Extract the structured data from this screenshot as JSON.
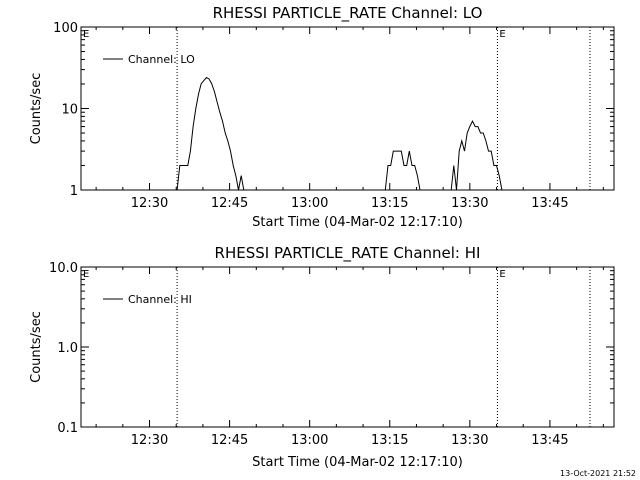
{
  "chart_data": [
    {
      "type": "line",
      "title": "RHESSI PARTICLE_RATE Channel: LO",
      "xlabel": "Start Time (04-Mar-02 12:17:10)",
      "ylabel": "Counts/sec",
      "yscale": "log",
      "ylim": [
        1,
        100
      ],
      "xlim": [
        "12:17:10",
        "13:57:00"
      ],
      "xticks": [
        "12:30",
        "12:45",
        "13:00",
        "13:15",
        "13:30",
        "13:45"
      ],
      "yticks": [
        {
          "value": 1,
          "label": "1"
        },
        {
          "value": 10,
          "label": "10"
        },
        {
          "value": 100,
          "label": "100"
        }
      ],
      "legend": {
        "position": "top-left",
        "entries": [
          "Channel: LO"
        ]
      },
      "vlines": [
        "12:35:10",
        "13:35:10",
        "13:52:30"
      ],
      "flags": [
        {
          "label": "E",
          "x": "12:17:10"
        },
        {
          "label": "E",
          "x": "13:35:10"
        }
      ],
      "grid": false,
      "series": [
        {
          "name": "Channel: LO",
          "x": [
            "12:35:10",
            "12:35:40",
            "12:36:40",
            "12:37:10",
            "12:37:40",
            "12:38:10",
            "12:38:40",
            "12:39:10",
            "12:39:40",
            "12:40:10",
            "12:40:40",
            "12:41:10",
            "12:41:40",
            "12:42:10",
            "12:42:40",
            "12:43:10",
            "12:43:40",
            "12:44:10",
            "12:44:40",
            "12:45:10",
            "12:45:40",
            "12:46:10",
            "12:46:40",
            "12:47:10",
            "12:47:40",
            "12:48:10",
            "12:48:40",
            "12:49:10",
            "12:49:40",
            "12:50:10",
            "12:50:40",
            "13:14:10",
            "13:14:40",
            "13:15:10",
            "13:15:40",
            "13:16:10",
            "13:16:40",
            "13:17:10",
            "13:17:40",
            "13:18:10",
            "13:18:40",
            "13:19:10",
            "13:19:40",
            "13:20:10",
            "13:20:40",
            "13:21:10",
            "13:21:40",
            "13:26:30",
            "13:27:00",
            "13:27:30",
            "13:28:00",
            "13:28:30",
            "13:29:00",
            "13:29:30",
            "13:30:00",
            "13:30:30",
            "13:31:00",
            "13:31:30",
            "13:32:00",
            "13:32:30",
            "13:33:00",
            "13:33:30",
            "13:34:00",
            "13:34:30",
            "13:35:00",
            "13:35:30",
            "13:36:00",
            "13:36:30",
            "13:37:00",
            "13:37:30",
            "13:41:00",
            "13:41:30",
            "13:42:00"
          ],
          "y": [
            1,
            2,
            2,
            2,
            3,
            6,
            10,
            15,
            20,
            22,
            24,
            23,
            20,
            16,
            12,
            9,
            7,
            5,
            4,
            3,
            2,
            1.5,
            1,
            1.5,
            1,
            1,
            1,
            1,
            1,
            1,
            1,
            1,
            2,
            2,
            3,
            3,
            3,
            3,
            2,
            2,
            3,
            2,
            2,
            1.5,
            1,
            1,
            1,
            1,
            2,
            1,
            3,
            4,
            3,
            5,
            6,
            7,
            6,
            6,
            5,
            5,
            4,
            3,
            3,
            2,
            2,
            1.5,
            1,
            1,
            1,
            1,
            1,
            1,
            1
          ]
        }
      ]
    },
    {
      "type": "line",
      "title": "RHESSI PARTICLE_RATE Channel: HI",
      "xlabel": "Start Time (04-Mar-02 12:17:10)",
      "ylabel": "Counts/sec",
      "yscale": "log",
      "ylim": [
        0.1,
        10
      ],
      "xlim": [
        "12:17:10",
        "13:57:00"
      ],
      "xticks": [
        "12:30",
        "12:45",
        "13:00",
        "13:15",
        "13:30",
        "13:45"
      ],
      "yticks": [
        {
          "value": 0.1,
          "label": "0.1"
        },
        {
          "value": 1,
          "label": "1.0"
        },
        {
          "value": 10,
          "label": "10.0"
        }
      ],
      "legend": {
        "position": "top-left",
        "entries": [
          "Channel: HI"
        ]
      },
      "vlines": [
        "12:35:10",
        "13:35:10",
        "13:52:30"
      ],
      "flags": [
        {
          "label": "E",
          "x": "12:17:10"
        },
        {
          "label": "E",
          "x": "13:35:10"
        }
      ],
      "grid": false,
      "series": [
        {
          "name": "Channel: HI",
          "x": [],
          "y": []
        }
      ]
    }
  ],
  "timestamp": "13-Oct-2021 21:52"
}
